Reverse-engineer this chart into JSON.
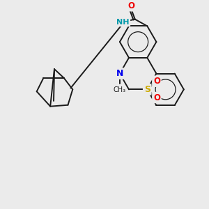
{
  "bg_color": "#ebebeb",
  "bond_color": "#1a1a1a",
  "bond_width": 1.4,
  "atom_colors": {
    "C": "#1a1a1a",
    "N": "#0000ee",
    "O": "#ee0000",
    "S": "#ccaa00",
    "H": "#0099aa"
  },
  "font_size": 8.5,
  "figsize": [
    3.0,
    3.0
  ],
  "dpi": 100,
  "aromatic_lw": 0.9
}
